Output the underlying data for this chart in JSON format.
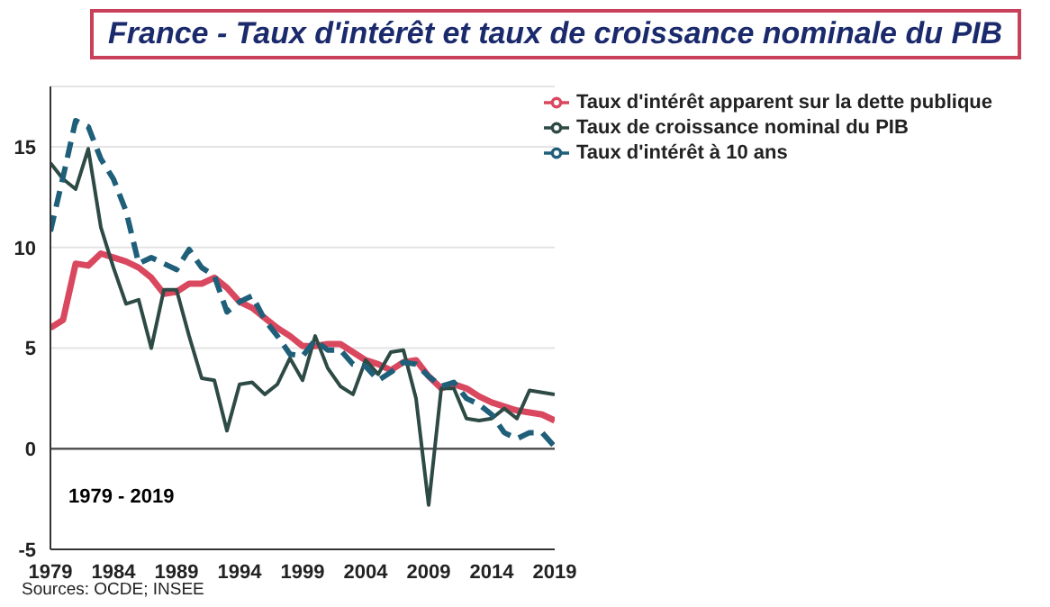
{
  "chart_data": {
    "type": "line",
    "title": "France - Taux d'intérêt et taux de croissance nominale du PIB",
    "x": [
      1979,
      1980,
      1981,
      1982,
      1983,
      1984,
      1985,
      1986,
      1987,
      1988,
      1989,
      1990,
      1991,
      1992,
      1993,
      1994,
      1995,
      1996,
      1997,
      1998,
      1999,
      2000,
      2001,
      2002,
      2003,
      2004,
      2005,
      2006,
      2007,
      2008,
      2009,
      2010,
      2011,
      2012,
      2013,
      2014,
      2015,
      2016,
      2017,
      2018,
      2019
    ],
    "series": [
      {
        "name": "Taux d'intérêt apparent sur la dette publique",
        "color": "#d9485f",
        "line_style": "solid",
        "values": [
          6.0,
          6.4,
          9.2,
          9.1,
          9.7,
          9.5,
          9.3,
          9.0,
          8.5,
          7.7,
          7.8,
          8.2,
          8.2,
          8.5,
          8.0,
          7.3,
          7.0,
          6.5,
          6.0,
          5.6,
          5.1,
          5.1,
          5.2,
          5.2,
          4.8,
          4.4,
          4.2,
          3.9,
          4.3,
          4.4,
          3.6,
          3.0,
          3.2,
          3.0,
          2.6,
          2.3,
          2.1,
          1.9,
          1.8,
          1.7,
          1.4
        ]
      },
      {
        "name": "Taux de croissance nominal du PIB",
        "color": "#2e4a45",
        "line_style": "solid",
        "values": [
          14.2,
          13.4,
          12.9,
          14.9,
          11.0,
          9.0,
          7.2,
          7.4,
          5.0,
          7.9,
          7.9,
          5.6,
          3.5,
          3.4,
          0.9,
          3.2,
          3.3,
          2.7,
          3.2,
          4.5,
          3.4,
          5.6,
          4.0,
          3.1,
          2.7,
          4.4,
          3.7,
          4.8,
          4.9,
          2.5,
          -2.8,
          3.0,
          3.0,
          1.5,
          1.4,
          1.5,
          2.0,
          1.5,
          2.9,
          2.8,
          2.7
        ]
      },
      {
        "name": "Taux d'intérêt à 10 ans",
        "color": "#1f5f7a",
        "line_style": "dashed",
        "values": [
          10.8,
          13.5,
          16.3,
          16.0,
          14.4,
          13.4,
          11.8,
          9.2,
          9.5,
          9.2,
          8.9,
          9.9,
          9.0,
          8.6,
          6.8,
          7.3,
          7.6,
          6.4,
          5.6,
          4.7,
          4.6,
          5.4,
          4.9,
          4.9,
          4.2,
          4.1,
          3.4,
          3.8,
          4.3,
          4.2,
          3.6,
          3.1,
          3.3,
          2.5,
          2.2,
          1.7,
          0.8,
          0.5,
          0.8,
          0.8,
          0.1
        ]
      }
    ],
    "xlim": [
      1979,
      2019
    ],
    "xticks": [
      1979,
      1984,
      1989,
      1994,
      1999,
      2004,
      2009,
      2014,
      2019
    ],
    "ylim": [
      -5,
      18
    ],
    "yticks": [
      -5,
      0,
      5,
      10,
      15
    ],
    "grid": "y",
    "legend": "top right",
    "ref_lines": [
      {
        "axis": "y",
        "value": 0,
        "color": "#555555"
      }
    ],
    "annotations": [
      "1979 - 2019",
      "Sources: OCDE; INSEE"
    ]
  }
}
